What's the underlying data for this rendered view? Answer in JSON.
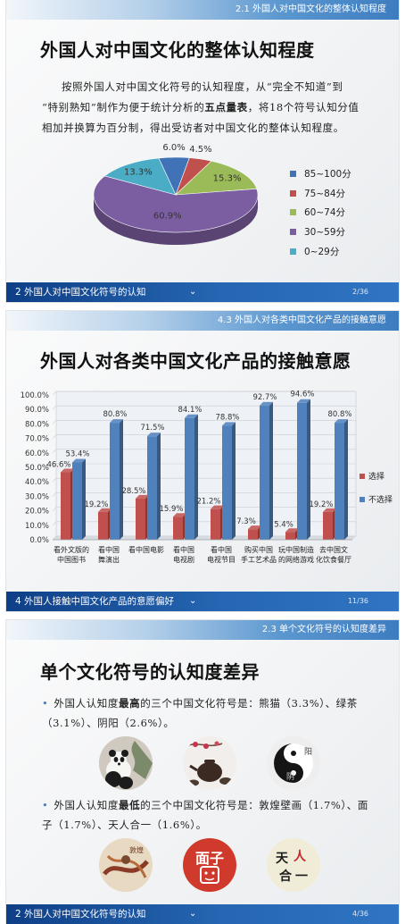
{
  "slide1": {
    "section_label": "2.1  外国人对中国文化的整体认知程度",
    "title": "外国人对中国文化的整体认知程度",
    "para": {
      "line1": "按照外国人对中国文化符号的认知程度，从“完全不知道”到",
      "line2_a": "“特别熟知”制作为便于统计分析的",
      "line2_bold": "五点量表",
      "line2_b": "，将18个符号认知分值",
      "line3": "相加并换算为百分制，得出受访者对中国文化的整体认知程度。"
    },
    "footer": "2  外国人对中国文化符号的认知",
    "chevron": "⌄",
    "page": "2/36",
    "chart_data": {
      "type": "pie",
      "categories": [
        "85~100分",
        "75~84分",
        "60~74分",
        "30~59分",
        "0~29分"
      ],
      "values": [
        6.0,
        4.5,
        15.3,
        60.9,
        13.3
      ],
      "value_labels": [
        "6.0%",
        "4.5%",
        "15.3%",
        "60.9%",
        "13.3%"
      ],
      "colors": [
        "#3f72b6",
        "#c0504d",
        "#9bbb59",
        "#7b5ea1",
        "#4bacc6"
      ],
      "legend_position": "right"
    }
  },
  "slide2": {
    "section_label": "4.3  外国人对各类中国文化产品的接触意愿",
    "title": "外国人对各类中国文化产品的接触意愿",
    "footer": "4  外国人接触中国文化产品的意愿偏好",
    "chevron": "⌄",
    "page": "11/36",
    "chart_data": {
      "type": "bar",
      "categories": [
        "看外文版的中国图书",
        "看中国舞演出",
        "看中国电影",
        "看中国电视剧",
        "看中国电视节目",
        "购买中国手工艺术品",
        "玩中国制造的网络游戏",
        "去中国文化饮食餐厅"
      ],
      "category_lines": [
        [
          "看外文版的",
          "中国图书"
        ],
        [
          "看中国",
          "舞演出"
        ],
        [
          "看中国电影",
          ""
        ],
        [
          "看中国",
          "电视剧"
        ],
        [
          "看中国",
          "电视节目"
        ],
        [
          "购买中国",
          "手工艺术品"
        ],
        [
          "玩中国制造",
          "的网络游戏"
        ],
        [
          "去中国文",
          "化饮食餐厅"
        ]
      ],
      "series": [
        {
          "name": "选择",
          "values": [
            46.6,
            19.2,
            28.5,
            15.9,
            21.2,
            7.3,
            5.4,
            19.2
          ],
          "color": "#c0504d"
        },
        {
          "name": "不选择",
          "values": [
            53.4,
            80.8,
            71.5,
            84.1,
            78.8,
            92.7,
            94.6,
            80.8
          ],
          "color": "#4f81bd"
        }
      ],
      "ylim": [
        0,
        100
      ],
      "y_ticks": [
        "0.0%",
        "10.0%",
        "20.0%",
        "30.0%",
        "40.0%",
        "50.0%",
        "60.0%",
        "70.0%",
        "80.0%",
        "90.0%",
        "100.0%"
      ],
      "legend_position": "right",
      "grid": true
    }
  },
  "slide3": {
    "section_label": "2.3  单个文化符号的认知度差异",
    "title": "单个文化符号的认知度差异",
    "bullet1": {
      "line1_a": "外国人认知度",
      "line1_bold": "最高",
      "line1_b": "的三个中国文化符号是：熊猫（3.3%）、绿茶",
      "line2": "（3.1%）、阴阳（2.6%）。"
    },
    "bullet2": {
      "line1_a": "外国人认知度",
      "line1_bold": "最低",
      "line1_b": "的三个中国文化符号是：敦煌壁画（1.7%）、面",
      "line2": "子（1.7%）、天人合一（1.6%）。"
    },
    "images_top": [
      "panda-image",
      "green-tea-image",
      "yin-yang-image"
    ],
    "images_bottom": [
      "dunhuang-mural-image",
      "mianzi-image",
      "tianrenheyi-image"
    ],
    "yinyang_text": [
      "阳",
      "阴"
    ],
    "mianzi_text": "面子",
    "dunhuang_text": "敦煌",
    "tianren_text": [
      "天",
      "人",
      "合",
      "一"
    ],
    "footer": "2  外国人对中国文化符号的认知",
    "chevron": "⌄",
    "page": "4/36"
  }
}
